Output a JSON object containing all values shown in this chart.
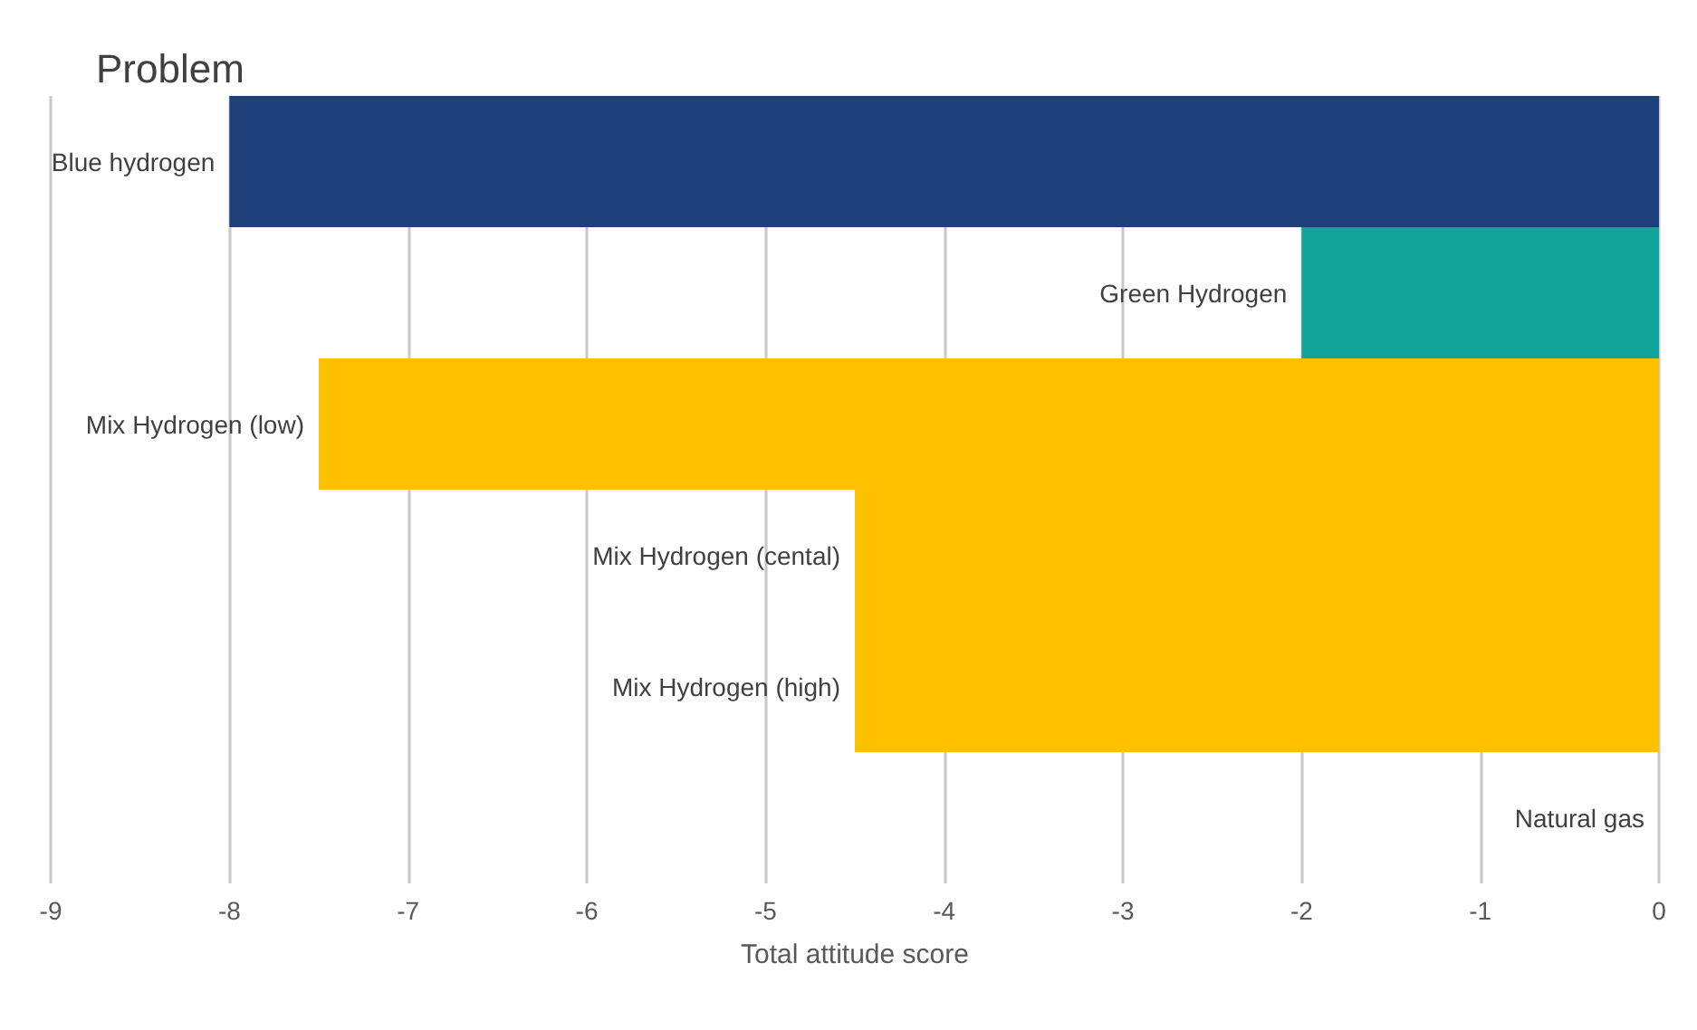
{
  "chart_data": {
    "type": "bar",
    "orientation": "horizontal",
    "title": "Problem",
    "xlabel": "Total attitude score",
    "categories": [
      "Blue hydrogen",
      "Green Hydrogen",
      "Mix Hydrogen (low)",
      "Mix Hydrogen (cental)",
      "Mix Hydrogen (high)",
      "Natural gas"
    ],
    "values": [
      -8,
      -2,
      -7.5,
      -4.5,
      -4.5,
      0
    ],
    "colors": [
      "#1f3f7a",
      "#12a39a",
      "#ffc000",
      "#ffc000",
      "#ffc000",
      "#a5a5a5"
    ],
    "xlim": [
      -9,
      0
    ],
    "xticks": [
      -9,
      -8,
      -7,
      -6,
      -5,
      -4,
      -3,
      -2,
      -1,
      0
    ],
    "grid": "x"
  }
}
